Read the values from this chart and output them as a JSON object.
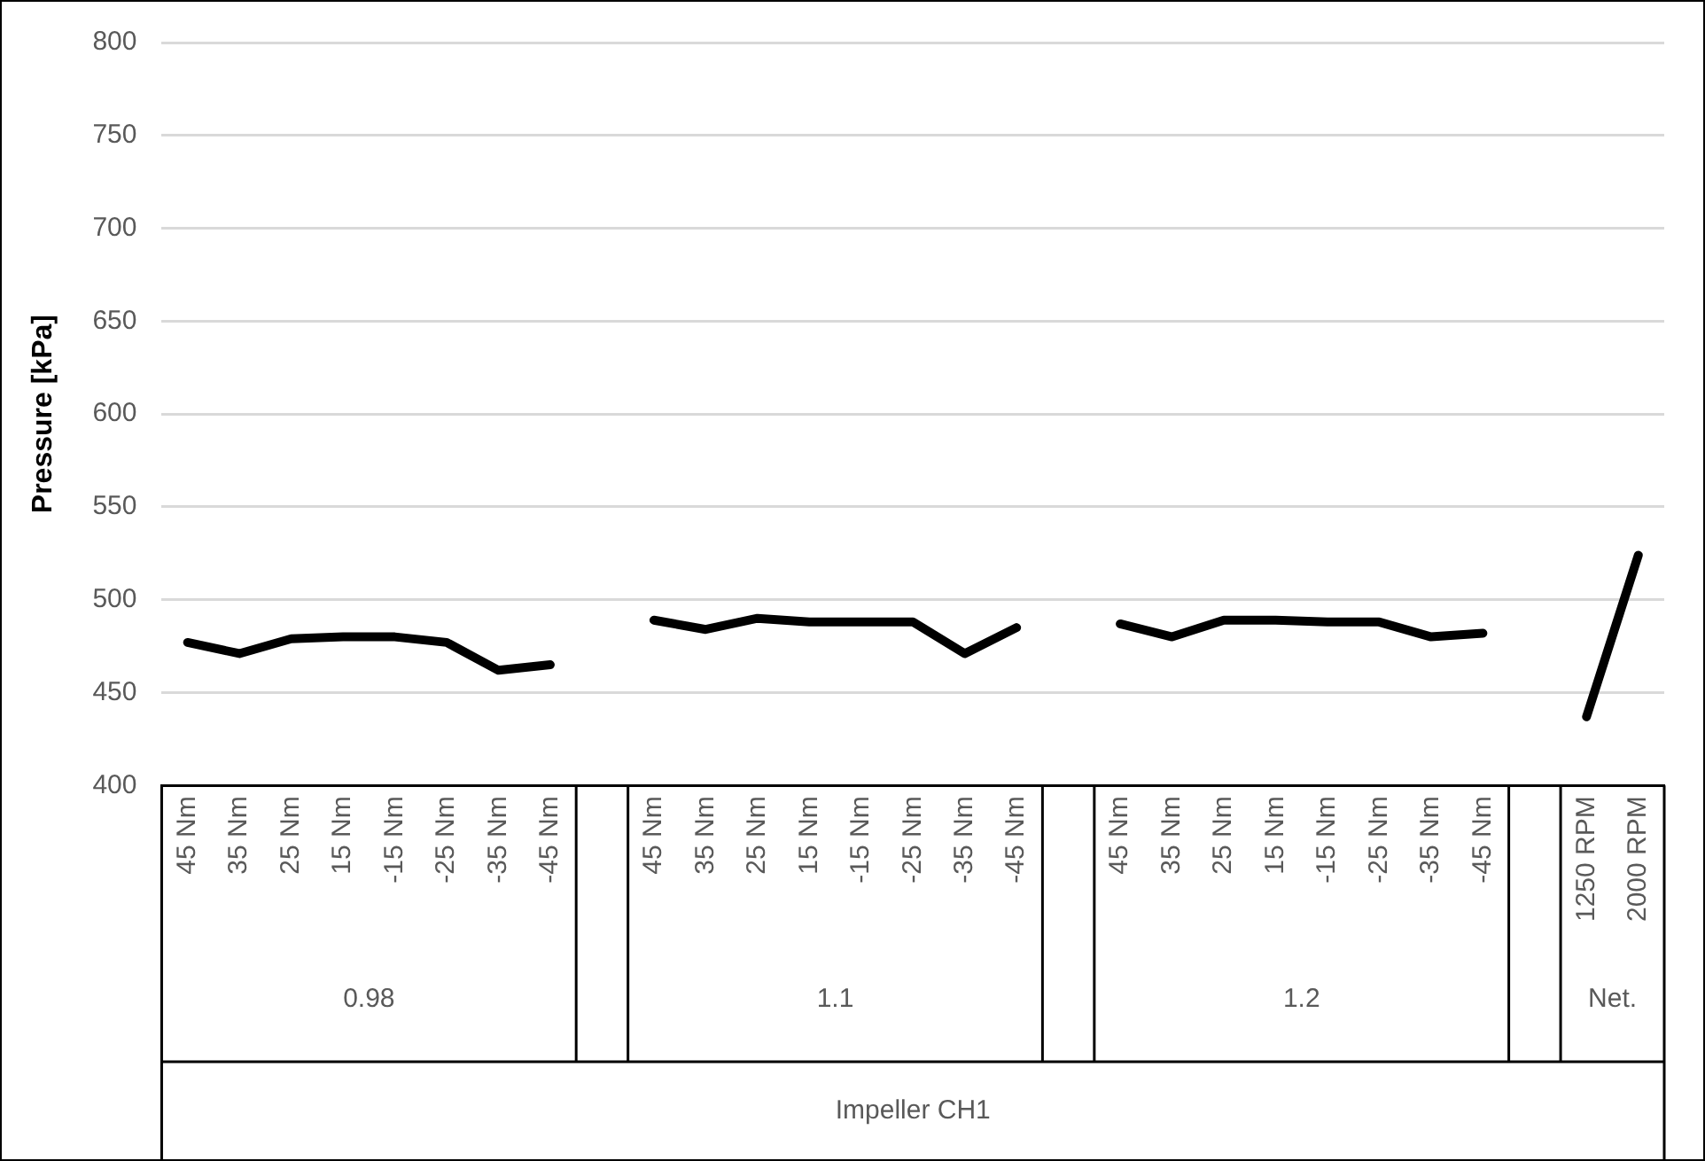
{
  "chart_data": {
    "type": "line",
    "ylabel": "Pressure [kPa]",
    "categories": [
      "45 Nm",
      "35 Nm",
      "25 Nm",
      "15 Nm",
      "-15 Nm",
      "-25 Nm",
      "-35 Nm",
      "-45 Nm",
      null,
      "45 Nm",
      "35 Nm",
      "25 Nm",
      "15 Nm",
      "-15 Nm",
      "-25 Nm",
      "-35 Nm",
      "-45 Nm",
      null,
      "45 Nm",
      "35 Nm",
      "25 Nm",
      "15 Nm",
      "-15 Nm",
      "-25 Nm",
      "-35 Nm",
      "-45 Nm",
      null,
      "1250 RPM",
      "2000 RPM"
    ],
    "values": [
      477,
      471,
      479,
      480,
      480,
      477,
      462,
      465,
      null,
      489,
      484,
      490,
      488,
      488,
      488,
      471,
      485,
      null,
      487,
      480,
      489,
      489,
      488,
      488,
      480,
      482,
      null,
      437,
      524
    ],
    "color": "#000000",
    "ylim": [
      400,
      800
    ],
    "yticks": [
      400,
      450,
      500,
      550,
      600,
      650,
      700,
      750,
      800
    ],
    "grid": "y",
    "legend": false,
    "marker": "none",
    "line_style": "solid",
    "annotations": [
      "0.98",
      "1.1",
      "1.2",
      "Net.",
      "Impeller CH1"
    ]
  }
}
